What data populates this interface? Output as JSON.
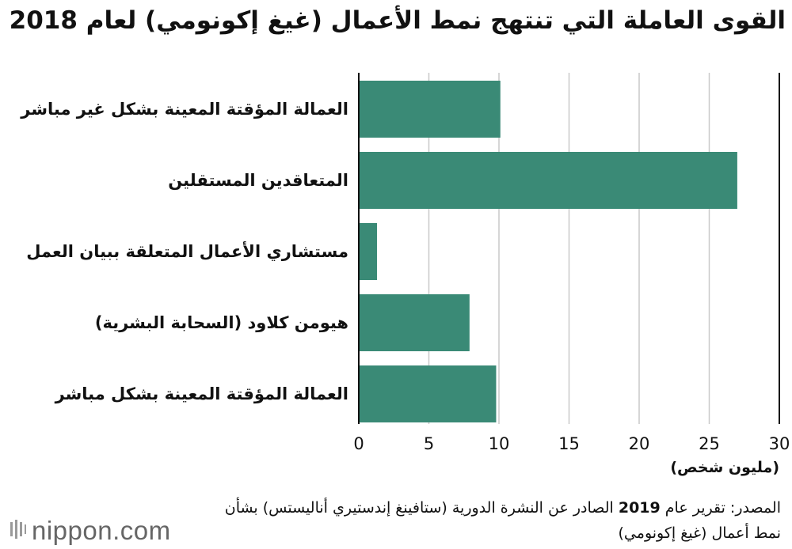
{
  "chart_data": {
    "type": "bar",
    "orientation": "horizontal",
    "title": "القوى العاملة التي تنتهج نمط الأعمال (غيغ إكونومي) لعام 2018",
    "categories": [
      "العمالة المؤقتة المعينة بشكل غير مباشر",
      "المتعاقدين المستقلين",
      "مستشاري الأعمال المتعلقة ببيان العمل",
      "هيومن كلاود (السحابة البشرية)",
      "العمالة المؤقتة المعينة بشكل مباشر"
    ],
    "values": [
      10.1,
      27.0,
      1.3,
      7.9,
      9.8
    ],
    "xlim": [
      0,
      30
    ],
    "xticks": [
      "0",
      "5",
      "10",
      "15",
      "20",
      "25",
      "30"
    ],
    "xunit": "(مليون شخص)",
    "grid": true,
    "bar_color": "#3a8a76",
    "grid_color": "#c9c9c9",
    "axis_color": "#111111"
  },
  "source": {
    "prefix": "المصدر: تقرير عام",
    "year": "2019",
    "suffix": "الصادر عن النشرة الدورية (ستافينغ إندستيري أناليستس) بشأن نمط أعمال (غيغ إكونومي)"
  },
  "logo": {
    "text": "nippon.com",
    "icon": "nippon-logo-icon"
  }
}
